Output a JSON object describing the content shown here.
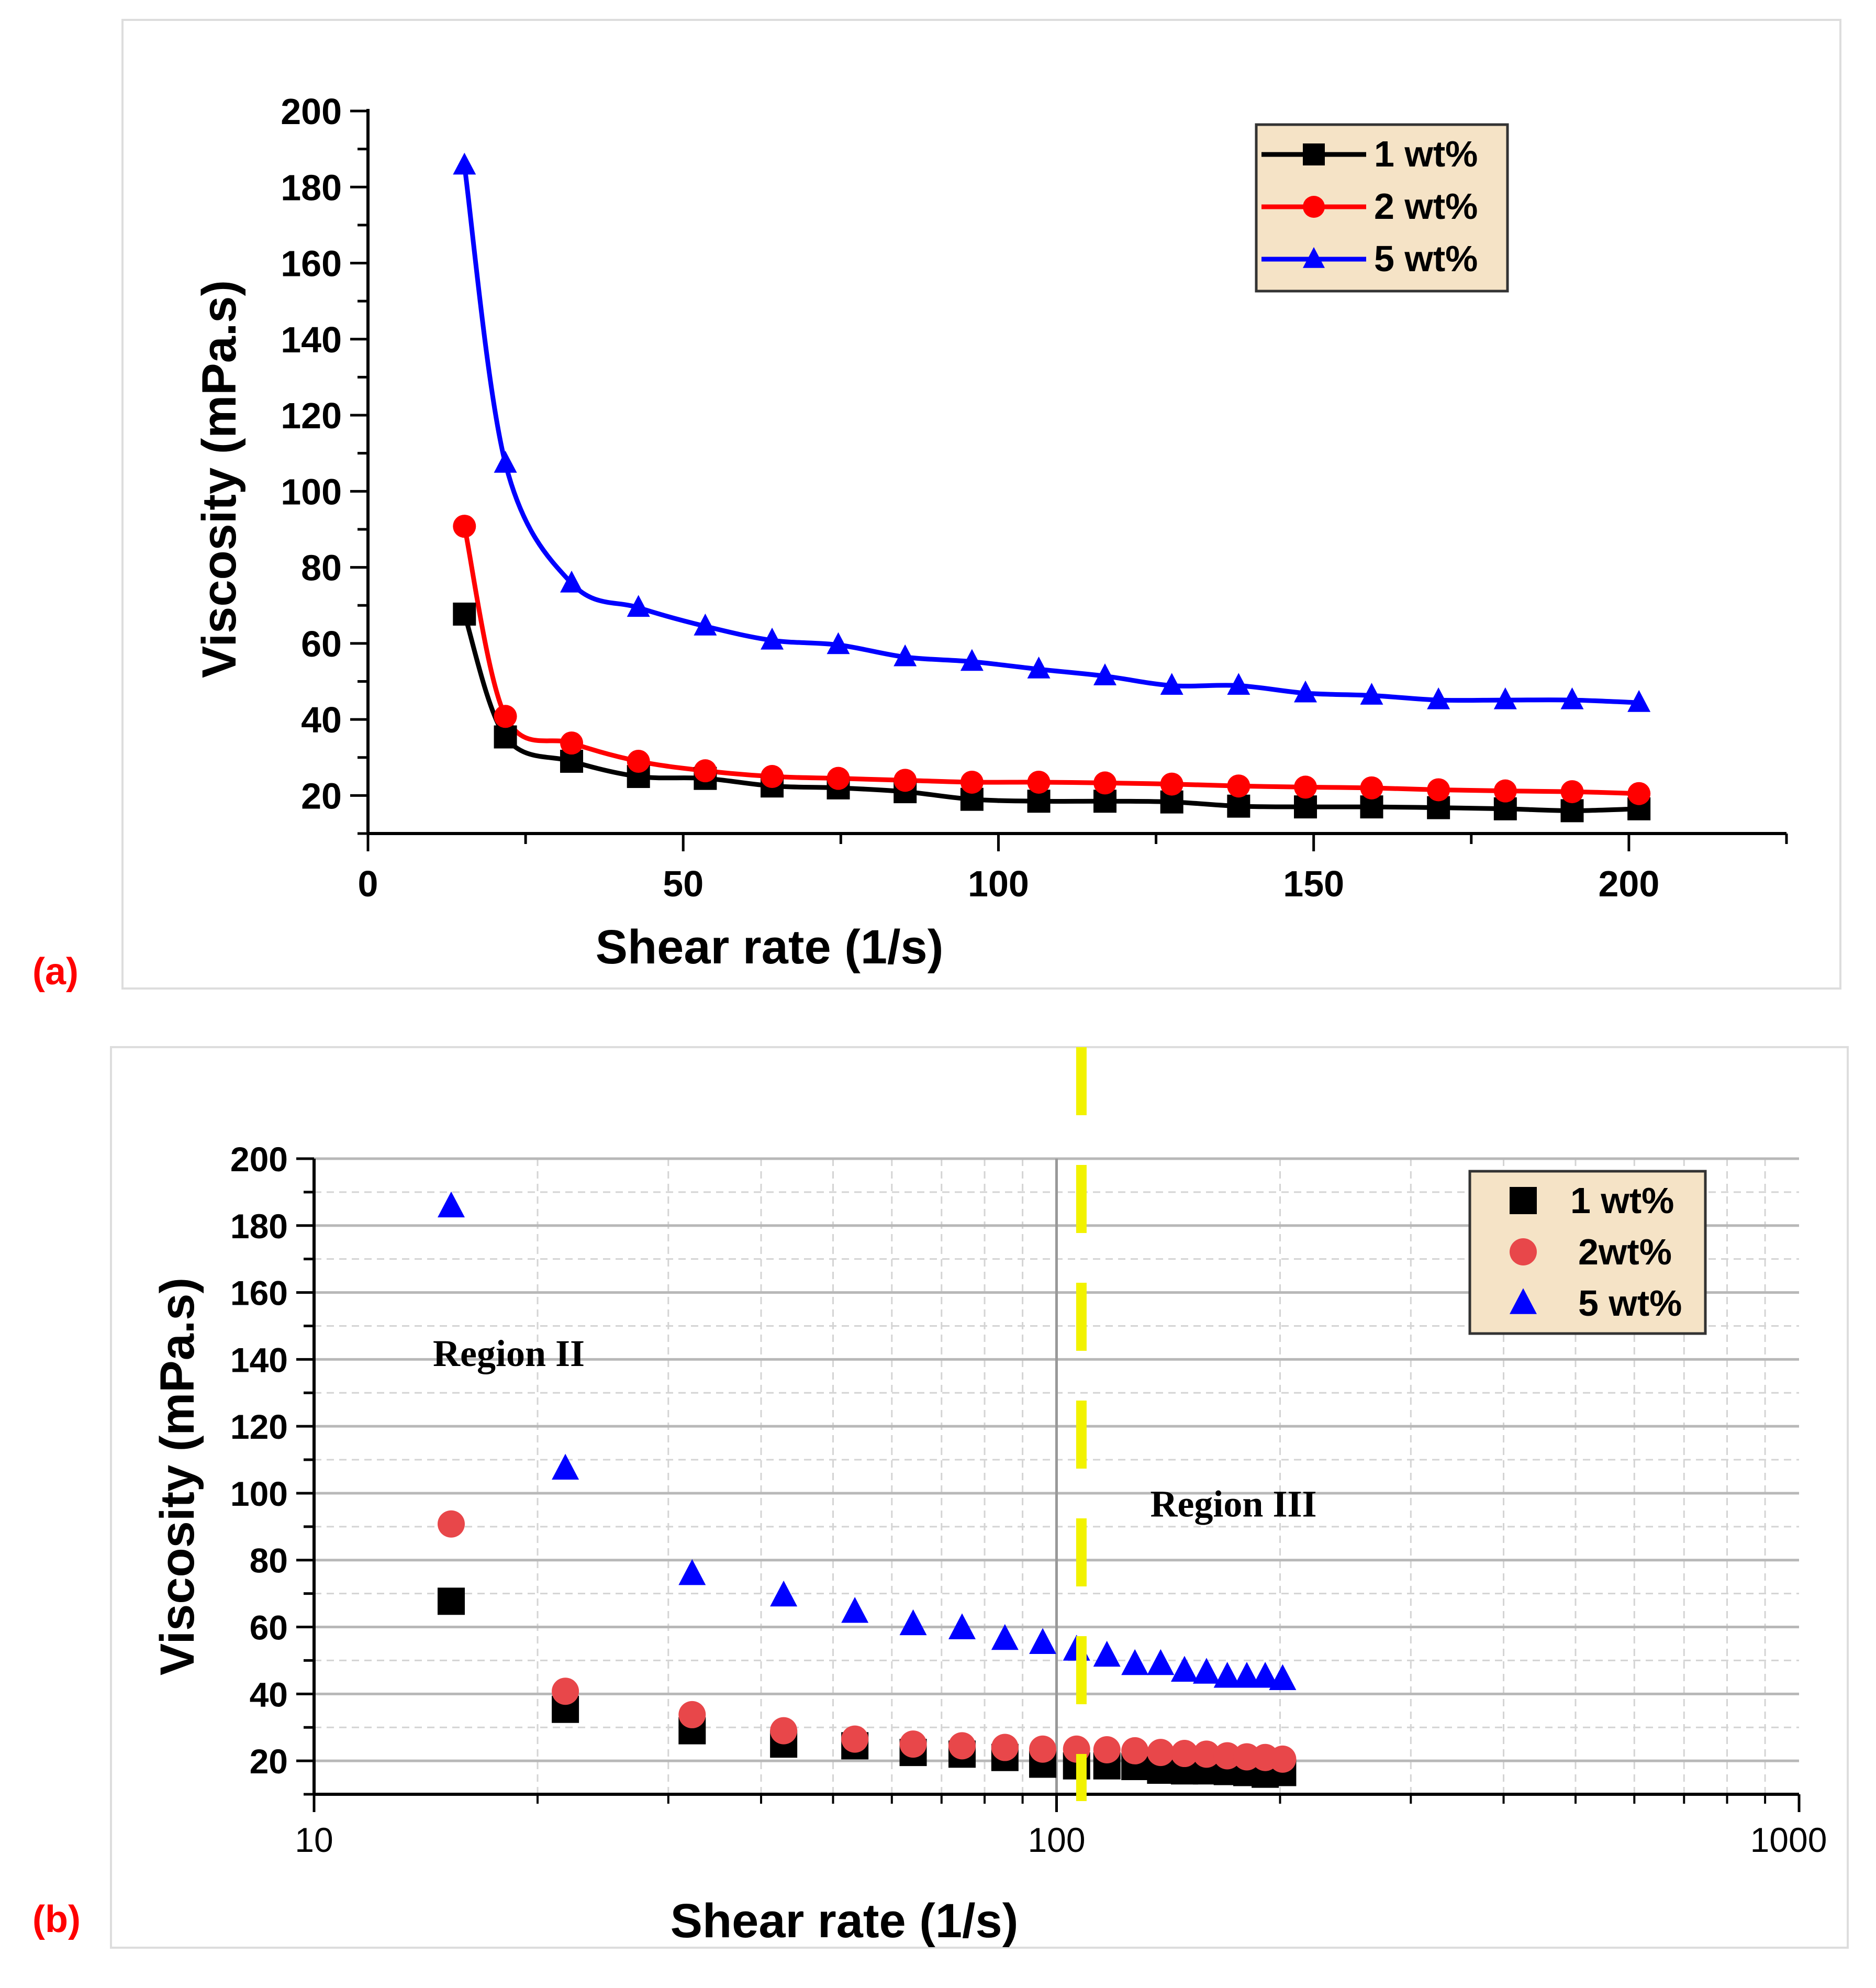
{
  "colors": {
    "black_series": "#000000",
    "red_series": "#ff0000",
    "blue_series": "#0000ff",
    "red_marker_b": "#e8474a",
    "legend_bg": "#f5e3c6",
    "divider": "#f2f200",
    "panel_label": "#ff0000",
    "grid": "#c8c8c8"
  },
  "chart_data": [
    {
      "panel_label": "(a)",
      "type": "line",
      "xlabel": "Shear rate (1/s)",
      "ylabel": "Viscosity (mPa.s)",
      "xlim": [
        0,
        225
      ],
      "ylim": [
        10,
        200
      ],
      "xticks": [
        0,
        50,
        100,
        150,
        200
      ],
      "yticks": [
        20,
        40,
        60,
        80,
        100,
        120,
        140,
        160,
        180,
        200
      ],
      "grid": false,
      "legend_position": "top-right",
      "x": [
        15.3,
        21.8,
        32.3,
        42.9,
        53.5,
        64.1,
        74.6,
        85.2,
        95.8,
        106.4,
        116.9,
        127.5,
        138.1,
        148.7,
        159.2,
        169.8,
        180.4,
        191.0,
        201.6
      ],
      "series": [
        {
          "name": "1 wt%",
          "marker": "square",
          "color": "#000000",
          "values": [
            67.7,
            35.4,
            29.0,
            25.0,
            24.5,
            22.5,
            22.0,
            21.0,
            19.0,
            18.5,
            18.5,
            18.3,
            17.2,
            17.0,
            17.0,
            16.8,
            16.5,
            16.0,
            16.5
          ]
        },
        {
          "name": "2 wt%",
          "marker": "circle",
          "color": "#ff0000",
          "values": [
            90.8,
            40.8,
            33.8,
            29.0,
            26.5,
            25.0,
            24.5,
            24.0,
            23.5,
            23.5,
            23.3,
            23.0,
            22.5,
            22.2,
            22.0,
            21.5,
            21.2,
            21.0,
            20.5
          ]
        },
        {
          "name": "5 wt%",
          "marker": "triangle",
          "color": "#0000ff",
          "values": [
            185.7,
            107.3,
            75.8,
            69.4,
            64.5,
            60.8,
            59.6,
            56.4,
            55.2,
            53.2,
            51.4,
            48.9,
            48.9,
            46.9,
            46.3,
            45.1,
            45.1,
            45.1,
            44.4
          ]
        }
      ]
    },
    {
      "panel_label": "(b)",
      "type": "scatter",
      "xscale": "log",
      "xlabel": "Shear rate (1/s)",
      "ylabel": "Viscosity (mPa.s)",
      "xlim": [
        10,
        1000
      ],
      "ylim": [
        10,
        200
      ],
      "xticks": [
        10,
        100,
        1000
      ],
      "yticks": [
        20,
        40,
        60,
        80,
        100,
        120,
        140,
        160,
        180,
        200
      ],
      "grid": true,
      "legend_position": "top-right",
      "divider_x": 108,
      "annotations": [
        {
          "text": "Region II",
          "x": 20,
          "y": 138
        },
        {
          "text": "Region III",
          "x": 185,
          "y": 93
        }
      ],
      "x": [
        15.3,
        21.8,
        32.3,
        42.9,
        53.5,
        64.1,
        74.6,
        85.2,
        95.8,
        106.4,
        116.9,
        127.5,
        138.1,
        148.7,
        159.2,
        169.8,
        180.4,
        191.0,
        201.6
      ],
      "series": [
        {
          "name": "1 wt%",
          "marker": "square",
          "color": "#000000",
          "values": [
            67.7,
            35.4,
            29.0,
            25.0,
            24.5,
            22.5,
            22.0,
            21.0,
            19.0,
            18.5,
            18.5,
            18.3,
            17.2,
            17.0,
            17.0,
            16.8,
            16.5,
            16.0,
            16.5
          ]
        },
        {
          "name": "2wt%",
          "marker": "circle",
          "color": "#e8474a",
          "values": [
            90.8,
            40.8,
            33.8,
            29.0,
            26.5,
            25.0,
            24.5,
            24.0,
            23.5,
            23.5,
            23.3,
            23.0,
            22.5,
            22.2,
            22.0,
            21.5,
            21.2,
            21.0,
            20.5
          ]
        },
        {
          "name": "5 wt%",
          "marker": "triangle",
          "color": "#0000ff",
          "values": [
            185.7,
            107.3,
            75.8,
            69.4,
            64.5,
            60.8,
            59.6,
            56.4,
            55.2,
            53.2,
            51.4,
            48.9,
            48.9,
            46.9,
            46.3,
            45.1,
            45.1,
            45.1,
            44.4
          ]
        }
      ]
    }
  ]
}
